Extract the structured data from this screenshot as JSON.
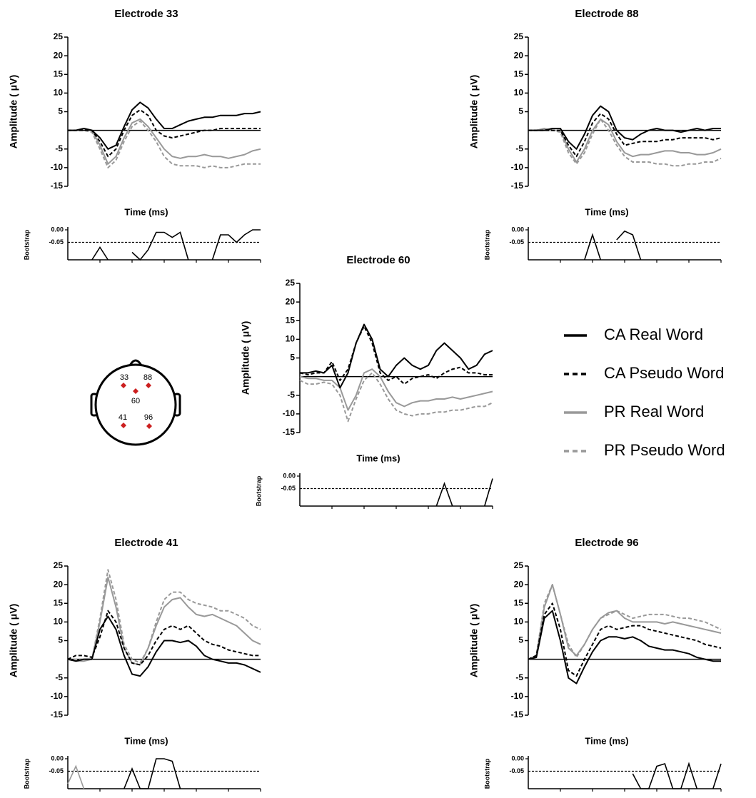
{
  "chart_data": [
    {
      "type": "line",
      "title": "Electrode 33",
      "ylabel": "Amplitude ( μV)",
      "xlabel": "Time (ms)",
      "ylim": [
        -15,
        25
      ],
      "yticks": [
        -15,
        -10,
        -5,
        5,
        10,
        15,
        20,
        25
      ],
      "series": [
        {
          "values": [
            0,
            0,
            0.5,
            0,
            -2,
            -5,
            -4,
            1,
            5.5,
            7.5,
            6,
            3,
            0.5,
            0.5,
            1.5,
            2.5,
            3,
            3.5,
            3.5,
            4,
            4,
            4,
            4.5,
            4.5,
            5
          ]
        },
        {
          "values": [
            0,
            0,
            0,
            0,
            -3,
            -7,
            -5,
            0,
            4,
            5.5,
            4,
            0,
            -1.5,
            -2,
            -1.5,
            -1,
            -0.5,
            0,
            0,
            0.5,
            0.5,
            0.5,
            0.5,
            0.5,
            0.5
          ]
        },
        {
          "values": [
            0,
            0,
            0.5,
            0,
            -4,
            -9,
            -7,
            -2,
            2,
            3,
            1,
            -2,
            -5,
            -7,
            -7.5,
            -7,
            -7,
            -6.5,
            -7,
            -7,
            -7.5,
            -7,
            -6.5,
            -5.5,
            -5
          ]
        },
        {
          "values": [
            0,
            0,
            0,
            -0.5,
            -5,
            -10,
            -8,
            -3,
            1,
            2.5,
            0,
            -3,
            -7,
            -9,
            -9.5,
            -9.5,
            -9.5,
            -10,
            -9.5,
            -10,
            -10,
            -9.5,
            -9,
            -9,
            -9
          ]
        }
      ],
      "bootstrap": {
        "type": "line",
        "ylabel": "Bootstrap",
        "ylim": [
          -0.12,
          0
        ],
        "yticks": [
          {
            "value": 0,
            "label": "0.00"
          },
          {
            "value": -0.05,
            "label": "-0.05"
          }
        ],
        "series": [
          {
            "color": "#000000",
            "values": [
              null,
              null,
              null,
              -0.12,
              -0.07,
              -0.12,
              null,
              null,
              -0.09,
              -0.12,
              -0.08,
              -0.01,
              -0.01,
              -0.03,
              -0.01,
              -0.12,
              null,
              null,
              -0.12,
              -0.02,
              -0.02,
              -0.05,
              -0.02,
              0,
              0
            ]
          }
        ]
      }
    },
    {
      "type": "line",
      "title": "Electrode 88",
      "ylabel": "Amplitude ( μV)",
      "xlabel": "Time (ms)",
      "ylim": [
        -15,
        25
      ],
      "yticks": [
        -15,
        -10,
        -5,
        5,
        10,
        15,
        20,
        25
      ],
      "series": [
        {
          "values": [
            0,
            0,
            0,
            0.5,
            0.5,
            -3,
            -5,
            -1,
            4,
            6.5,
            5,
            0,
            -2,
            -2.5,
            -1,
            0,
            0.5,
            0,
            0,
            -0.5,
            0,
            0.5,
            0,
            0.5,
            0.5
          ]
        },
        {
          "values": [
            0,
            0,
            0,
            0,
            0,
            -4,
            -7,
            -3,
            2,
            4.5,
            3,
            -1,
            -4,
            -3.5,
            -3,
            -3,
            -3,
            -2.5,
            -2.5,
            -2,
            -2,
            -2,
            -2,
            -2.5,
            -2
          ]
        },
        {
          "values": [
            0,
            0,
            0.5,
            0,
            0,
            -5,
            -8.5,
            -5,
            0,
            3,
            1.5,
            -3,
            -6,
            -7,
            -6.5,
            -6.5,
            -6,
            -5.5,
            -5.5,
            -6,
            -6,
            -6.5,
            -6.5,
            -6,
            -5
          ]
        },
        {
          "values": [
            0,
            0,
            0,
            0,
            -0.5,
            -6,
            -9,
            -6,
            -1,
            3,
            0,
            -4,
            -7,
            -8.5,
            -8.5,
            -8.5,
            -9,
            -9,
            -9.5,
            -9.5,
            -9,
            -9,
            -8.5,
            -8.5,
            -7.5
          ]
        }
      ],
      "bootstrap": {
        "type": "line",
        "ylabel": "Bootstrap",
        "ylim": [
          -0.12,
          0
        ],
        "yticks": [
          {
            "value": 0,
            "label": "0.00"
          },
          {
            "value": -0.05,
            "label": "-0.05"
          }
        ],
        "series": [
          {
            "color": "#000000",
            "values": [
              null,
              null,
              null,
              null,
              null,
              null,
              null,
              -0.12,
              -0.02,
              -0.12,
              null,
              -0.04,
              -0.005,
              -0.02,
              -0.12,
              null,
              null,
              null,
              null,
              null,
              null,
              null,
              null,
              null,
              null
            ]
          }
        ]
      }
    },
    {
      "type": "line",
      "title": "Electrode 60",
      "ylabel": "Amplitude ( μV)",
      "xlabel": "Time (ms)",
      "ylim": [
        -15,
        25
      ],
      "yticks": [
        -15,
        -10,
        -5,
        5,
        10,
        15,
        20,
        25
      ],
      "series": [
        {
          "values": [
            1,
            1,
            1.5,
            1,
            3,
            -3,
            1,
            9,
            14,
            10,
            2,
            0,
            3,
            5,
            3,
            2,
            3,
            7,
            9,
            7,
            5,
            2,
            3,
            6,
            7
          ]
        },
        {
          "values": [
            1,
            0.5,
            1,
            1,
            4,
            -1,
            2,
            9,
            13.5,
            9,
            1,
            -1,
            0,
            -2,
            -0.5,
            0,
            0.5,
            -0.5,
            1,
            2,
            2.5,
            1,
            1,
            0.5,
            0.5
          ]
        },
        {
          "values": [
            0,
            -0.5,
            -0.5,
            -1,
            -1,
            -3,
            -9,
            -5,
            1,
            2,
            0,
            -4,
            -7,
            -8,
            -7,
            -6.5,
            -6.5,
            -6,
            -6,
            -5.5,
            -6,
            -5.5,
            -5,
            -4.5,
            -4
          ]
        },
        {
          "values": [
            -1,
            -2,
            -2,
            -1.5,
            -2,
            -5,
            -12,
            -6,
            -1,
            1,
            -2,
            -6,
            -9,
            -10,
            -10.5,
            -10,
            -10,
            -9.5,
            -9.5,
            -9,
            -9,
            -8.5,
            -8,
            -8,
            -7
          ]
        }
      ],
      "bootstrap": {
        "type": "line",
        "ylabel": "Bootstrap",
        "ylim": [
          -0.12,
          0
        ],
        "yticks": [
          {
            "value": 0,
            "label": "0.00"
          },
          {
            "value": -0.05,
            "label": "-0.05"
          }
        ],
        "series": [
          {
            "color": "#000000",
            "values": [
              null,
              null,
              null,
              null,
              null,
              null,
              null,
              null,
              null,
              null,
              null,
              null,
              null,
              null,
              null,
              null,
              null,
              -0.12,
              -0.03,
              -0.12,
              null,
              null,
              null,
              -0.12,
              -0.01
            ]
          }
        ]
      }
    },
    {
      "type": "line",
      "title": "Electrode 41",
      "ylabel": "Amplitude ( μV)",
      "xlabel": "Time (ms)",
      "ylim": [
        -15,
        25
      ],
      "yticks": [
        -15,
        -10,
        -5,
        5,
        10,
        15,
        20,
        25
      ],
      "series": [
        {
          "values": [
            0,
            -0.5,
            0,
            0,
            8,
            11.5,
            8,
            1,
            -4,
            -4.5,
            -2,
            2,
            5,
            5,
            4.5,
            5,
            3.5,
            1,
            0,
            -0.5,
            -1,
            -1,
            -1.5,
            -2.5,
            -3.5
          ]
        },
        {
          "values": [
            0,
            1,
            1,
            0.5,
            6,
            13,
            10,
            3,
            -1,
            -1.5,
            1,
            5,
            8,
            9,
            8,
            9,
            7,
            5,
            4,
            3.5,
            2.5,
            2,
            1.5,
            1,
            1
          ]
        },
        {
          "values": [
            0,
            -0.5,
            -0.5,
            0,
            10,
            22,
            14,
            3,
            -1,
            -1.5,
            3,
            9,
            14,
            16,
            16.5,
            14,
            12,
            11.5,
            12,
            11,
            10,
            9,
            7,
            5,
            4
          ]
        },
        {
          "values": [
            0,
            0,
            0,
            0,
            11,
            24,
            16,
            4,
            0,
            -1,
            3,
            10,
            16,
            18,
            18,
            16,
            15,
            14.5,
            14,
            13,
            13,
            12,
            11,
            9,
            8
          ]
        }
      ],
      "bootstrap": {
        "type": "line",
        "ylabel": "Bootstrap",
        "ylim": [
          -0.12,
          0
        ],
        "yticks": [
          {
            "value": 0,
            "label": "0.00"
          },
          {
            "value": -0.05,
            "label": "-0.05"
          }
        ],
        "series": [
          {
            "color": "#000000",
            "values": [
              null,
              null,
              null,
              null,
              null,
              null,
              null,
              -0.12,
              -0.04,
              -0.12,
              -0.12,
              0,
              0,
              -0.01,
              -0.12,
              null,
              null,
              null,
              null,
              null,
              null,
              null,
              null,
              null,
              null
            ]
          },
          {
            "color": "#999999",
            "values": [
              -0.1,
              -0.03,
              -0.12,
              null,
              null,
              null,
              null,
              null,
              null,
              null,
              null,
              null,
              null,
              null,
              null,
              null,
              null,
              null,
              null,
              null,
              null,
              null,
              null,
              null,
              null
            ]
          }
        ]
      }
    },
    {
      "type": "line",
      "title": "Electrode 96",
      "ylabel": "Amplitude ( μV)",
      "xlabel": "Time (ms)",
      "ylim": [
        -15,
        25
      ],
      "yticks": [
        -15,
        -10,
        -5,
        5,
        10,
        15,
        20,
        25
      ],
      "series": [
        {
          "values": [
            0,
            0.5,
            11,
            13,
            5,
            -5,
            -6.5,
            -2,
            2,
            5,
            6,
            6,
            5.5,
            6,
            5,
            3.5,
            3,
            2.5,
            2.5,
            2,
            1.5,
            0.5,
            0,
            -0.5,
            -0.5
          ]
        },
        {
          "values": [
            0,
            1,
            12,
            15,
            8,
            -3,
            -4.5,
            0,
            4,
            8,
            9,
            8,
            8.5,
            9,
            9,
            8,
            7.5,
            7,
            6.5,
            6,
            5.5,
            5,
            4,
            3.5,
            3
          ]
        },
        {
          "values": [
            0,
            1,
            14,
            20,
            12,
            3,
            1,
            4,
            8,
            11,
            12.5,
            13,
            11,
            10,
            10,
            10,
            10,
            9.5,
            10,
            9.5,
            9,
            8.5,
            8,
            7.5,
            7
          ]
        },
        {
          "values": [
            0,
            1,
            15,
            20,
            12,
            4,
            0.5,
            4,
            8,
            11,
            12,
            13,
            12,
            11,
            11.5,
            12,
            12,
            12,
            11.5,
            11,
            11,
            10.5,
            10,
            9,
            8
          ]
        }
      ],
      "bootstrap": {
        "type": "line",
        "ylabel": "Bootstrap",
        "ylim": [
          -0.12,
          0
        ],
        "yticks": [
          {
            "value": 0,
            "label": "0.00"
          },
          {
            "value": -0.05,
            "label": "-0.05"
          }
        ],
        "series": [
          {
            "color": "#000000",
            "values": [
              null,
              null,
              null,
              null,
              null,
              null,
              null,
              null,
              null,
              null,
              null,
              null,
              null,
              -0.06,
              -0.12,
              -0.12,
              -0.03,
              -0.02,
              -0.12,
              -0.12,
              -0.02,
              -0.12,
              null,
              -0.12,
              -0.02
            ]
          }
        ]
      }
    }
  ],
  "legend": {
    "series": [
      {
        "name": "CA Real Word",
        "color": "#000000",
        "dashed": false
      },
      {
        "name": "CA Pseudo Word",
        "color": "#000000",
        "dashed": true
      },
      {
        "name": "PR Real Word",
        "color": "#999999",
        "dashed": false
      },
      {
        "name": "PR Pseudo Word",
        "color": "#999999",
        "dashed": true
      }
    ]
  },
  "head": {
    "labels": [
      "33",
      "88",
      "60",
      "41",
      "96"
    ]
  }
}
